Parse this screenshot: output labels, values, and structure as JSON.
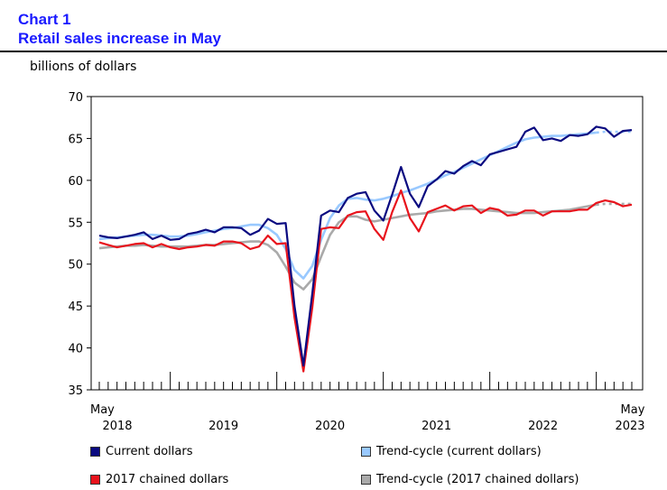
{
  "header": {
    "chart_number": "Chart 1",
    "title": "Retail sales increase in May",
    "unit_label": "billions of dollars"
  },
  "colors": {
    "current": "#0a0a80",
    "trend_current": "#99c9ff",
    "chained": "#e8131c",
    "trend_chained": "#aaaaaa",
    "title": "#1a1aff"
  },
  "chart_data": {
    "type": "line",
    "title": "Retail sales increase in May",
    "ylabel": "billions of dollars",
    "xlabel": "",
    "ylim": [
      35,
      70
    ],
    "yticks": [
      35,
      40,
      45,
      50,
      55,
      60,
      65,
      70
    ],
    "grid": false,
    "x_start": "May 2018",
    "x_end": "May 2023",
    "x_tick_labels": [
      {
        "month": "May",
        "year": "2018",
        "index": 0
      },
      {
        "month": "",
        "year": "2019",
        "index": 12
      },
      {
        "month": "",
        "year": "2020",
        "index": 24
      },
      {
        "month": "",
        "year": "2021",
        "index": 36
      },
      {
        "month": "",
        "year": "2022",
        "index": 48
      },
      {
        "month": "May",
        "year": "2023",
        "index": 60
      }
    ],
    "series": [
      {
        "name": "Current dollars",
        "key": "current",
        "values": [
          53.4,
          53.2,
          53.1,
          53.3,
          53.5,
          53.8,
          53.0,
          53.4,
          52.9,
          53.0,
          53.6,
          53.8,
          54.1,
          53.8,
          54.4,
          54.4,
          54.3,
          53.5,
          54.0,
          55.4,
          54.8,
          54.9,
          45.0,
          37.9,
          46.5,
          55.8,
          56.4,
          56.2,
          57.9,
          58.4,
          58.6,
          56.4,
          55.2,
          58.3,
          61.6,
          58.4,
          56.8,
          59.3,
          60.1,
          61.1,
          60.8,
          61.7,
          62.3,
          61.8,
          63.1,
          63.4,
          63.7,
          64.0,
          65.8,
          66.3,
          64.8,
          65.0,
          64.7,
          65.4,
          65.3,
          65.5,
          66.4,
          66.2,
          65.2,
          65.9,
          66.0
        ]
      },
      {
        "name": "Trend-cycle (current dollars)",
        "key": "trend_current",
        "values": [
          53.0,
          53.1,
          53.2,
          53.3,
          53.4,
          53.5,
          53.5,
          53.4,
          53.3,
          53.3,
          53.4,
          53.6,
          53.8,
          54.0,
          54.2,
          54.3,
          54.5,
          54.7,
          54.7,
          54.3,
          53.5,
          51.8,
          49.3,
          48.3,
          49.8,
          52.9,
          55.5,
          57.0,
          57.8,
          57.9,
          57.7,
          57.6,
          57.8,
          58.1,
          58.5,
          58.8,
          59.2,
          59.6,
          60.1,
          60.6,
          61.0,
          61.5,
          62.0,
          62.5,
          63.0,
          63.5,
          64.0,
          64.5,
          64.9,
          65.1,
          65.2,
          65.3,
          65.3,
          65.4,
          65.5,
          65.6,
          65.7,
          65.8,
          65.8,
          65.8,
          65.8
        ]
      },
      {
        "name": "2017 chained dollars",
        "key": "chained",
        "values": [
          52.6,
          52.3,
          52.0,
          52.2,
          52.4,
          52.5,
          52.0,
          52.4,
          52.0,
          51.8,
          52.0,
          52.1,
          52.3,
          52.2,
          52.7,
          52.7,
          52.5,
          51.8,
          52.1,
          53.4,
          52.4,
          52.5,
          43.6,
          37.2,
          44.8,
          54.2,
          54.4,
          54.3,
          55.8,
          56.2,
          56.3,
          54.2,
          52.9,
          56.2,
          58.8,
          55.5,
          53.9,
          56.2,
          56.6,
          57.0,
          56.4,
          56.9,
          57.0,
          56.1,
          56.7,
          56.5,
          55.8,
          55.9,
          56.4,
          56.4,
          55.8,
          56.3,
          56.3,
          56.3,
          56.5,
          56.5,
          57.3,
          57.6,
          57.4,
          56.9,
          57.1
        ]
      },
      {
        "name": "Trend-cycle (2017 chained dollars)",
        "key": "trend_chained",
        "values": [
          51.9,
          52.0,
          52.1,
          52.2,
          52.2,
          52.3,
          52.2,
          52.1,
          52.1,
          52.1,
          52.1,
          52.2,
          52.3,
          52.3,
          52.4,
          52.5,
          52.6,
          52.7,
          52.7,
          52.3,
          51.4,
          49.7,
          47.8,
          47.0,
          48.2,
          50.9,
          53.5,
          55.0,
          55.7,
          55.7,
          55.3,
          55.1,
          55.3,
          55.5,
          55.7,
          55.9,
          56.0,
          56.1,
          56.3,
          56.4,
          56.5,
          56.6,
          56.6,
          56.5,
          56.4,
          56.3,
          56.2,
          56.1,
          56.1,
          56.1,
          56.2,
          56.3,
          56.4,
          56.5,
          56.7,
          56.9,
          57.1,
          57.2,
          57.2,
          57.2,
          57.2
        ]
      }
    ],
    "legend": {
      "placement": "bottom",
      "items": [
        {
          "label": "Current dollars",
          "key": "current"
        },
        {
          "label": "Trend-cycle (current dollars)",
          "key": "trend_current"
        },
        {
          "label": "2017 chained dollars",
          "key": "chained"
        },
        {
          "label": "Trend-cycle (2017 chained dollars)",
          "key": "trend_chained"
        }
      ]
    }
  }
}
